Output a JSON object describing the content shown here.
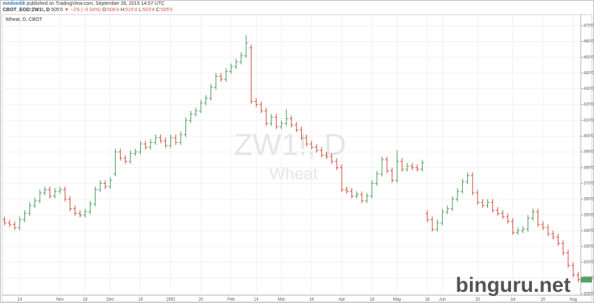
{
  "header": {
    "author": "medvedik",
    "published": "published on TradingView.com, September 28, 2015 14:57 UTC",
    "symbol": "CBOT_EOD:ZW1!, D",
    "price": "505'0",
    "change": "▼ −2'6 (−0.54%)",
    "fields": [
      {
        "label": "O:",
        "value": "508'4"
      },
      {
        "label": "H:",
        "value": "515'4"
      },
      {
        "label": "L:",
        "value": "503'4"
      },
      {
        "label": "C:",
        "value": "505'0"
      }
    ]
  },
  "chart_data": {
    "type": "ohlc",
    "title": "Wheat, D, CBOT",
    "watermark": "ZW1!, D",
    "watermark_sub": "Wheat",
    "site_watermark": "binguru.net",
    "up_color": "#53a065",
    "down_color": "#d75442",
    "categories": [
      null,
      null,
      null,
      "14",
      null,
      null,
      null,
      null,
      null,
      null,
      null,
      "Nov",
      null,
      null,
      null,
      null,
      "18",
      null,
      null,
      null,
      null,
      "Dec",
      null,
      null,
      null,
      null,
      null,
      "18",
      null,
      null,
      null,
      null,
      null,
      "1992",
      null,
      null,
      null,
      null,
      null,
      "20",
      null,
      null,
      null,
      null,
      null,
      "Feb",
      null,
      null,
      null,
      null,
      "14",
      null,
      null,
      null,
      null,
      "Mar",
      null,
      null,
      null,
      null,
      null,
      "16",
      null,
      null,
      null,
      null,
      null,
      "Apr",
      null,
      null,
      null,
      null,
      null,
      "18",
      null,
      null,
      null,
      null,
      "May",
      null,
      null,
      null,
      null,
      null,
      "18",
      null,
      null,
      "Jun",
      null,
      null,
      null,
      null,
      null,
      null,
      "15",
      null,
      null,
      null,
      null,
      null,
      null,
      "Jul",
      null,
      null,
      null,
      null,
      null,
      "20",
      null,
      null,
      null,
      null,
      null,
      "Aug",
      null
    ],
    "open": [
      347,
      345,
      344,
      342,
      347,
      351,
      356,
      359,
      364,
      366,
      362,
      365,
      366,
      360,
      354,
      351,
      350,
      352,
      357,
      366,
      370,
      368,
      376,
      390,
      386,
      384,
      389,
      390,
      395,
      393,
      396,
      399,
      397,
      394,
      399,
      396,
      401,
      410,
      414,
      416,
      421,
      424,
      431,
      438,
      436,
      441,
      444,
      447,
      451,
      456,
      422,
      420,
      416,
      408,
      412,
      406,
      408,
      411,
      407,
      404,
      399,
      395,
      393,
      391,
      388,
      387,
      384,
      380,
      366,
      365,
      362,
      363,
      359,
      362,
      370,
      376,
      385,
      378,
      372,
      384,
      379,
      381,
      380,
      379,
      351,
      347,
      341,
      345,
      352,
      354,
      360,
      365,
      371,
      375,
      364,
      358,
      356,
      358,
      353,
      351,
      349,
      346,
      339,
      340,
      341,
      348,
      352,
      344,
      342,
      338,
      336,
      332,
      326,
      318,
      312
    ],
    "high": [
      349,
      347,
      346,
      349,
      353,
      358,
      361,
      366,
      368,
      368,
      367,
      368,
      368,
      362,
      356,
      353,
      354,
      359,
      368,
      372,
      372,
      374,
      392,
      392,
      388,
      391,
      392,
      397,
      397,
      398,
      401,
      401,
      399,
      401,
      401,
      403,
      412,
      416,
      418,
      423,
      426,
      433,
      440,
      440,
      443,
      446,
      449,
      453,
      464,
      458,
      424,
      422,
      418,
      414,
      414,
      410,
      417,
      413,
      409,
      406,
      401,
      397,
      395,
      393,
      390,
      389,
      386,
      382,
      368,
      367,
      365,
      365,
      364,
      372,
      378,
      387,
      387,
      380,
      391,
      386,
      383,
      383,
      382,
      385,
      353,
      349,
      347,
      354,
      356,
      362,
      367,
      373,
      377,
      377,
      366,
      360,
      360,
      360,
      355,
      353,
      351,
      348,
      342,
      343,
      350,
      354,
      354,
      346,
      344,
      340,
      338,
      334,
      328,
      320,
      314
    ],
    "low": [
      343.5,
      342.5,
      340.5,
      340.5,
      345.5,
      349.5,
      354.5,
      357.5,
      362.5,
      360.5,
      360.5,
      363.5,
      358.5,
      352.5,
      349.5,
      348.5,
      348.5,
      350.5,
      355.5,
      364.5,
      366.5,
      366.5,
      374.5,
      384.5,
      382.5,
      382.5,
      387.5,
      388.5,
      391.5,
      391.5,
      394.5,
      395.5,
      392.5,
      392.5,
      394.5,
      394.5,
      399.5,
      408.5,
      412.5,
      414.5,
      419.5,
      422.5,
      429.5,
      434.5,
      434.5,
      439.5,
      442.5,
      445.5,
      449.5,
      420.5,
      418.5,
      414.5,
      406.5,
      406.5,
      404.5,
      404.5,
      406.5,
      405.5,
      402.5,
      397.5,
      393.5,
      391.5,
      389.5,
      386.5,
      385.5,
      382.5,
      378.5,
      364.5,
      363.5,
      360.5,
      360.5,
      357.5,
      357.5,
      360.5,
      368.5,
      374.5,
      376.5,
      370.5,
      370.5,
      377.5,
      377.5,
      378.5,
      377.5,
      377.5,
      345.5,
      339.5,
      339.5,
      343.5,
      350.5,
      352.5,
      358.5,
      363.5,
      369.5,
      362.5,
      356.5,
      354.5,
      354.5,
      351.5,
      349.5,
      347.5,
      344.5,
      337.5,
      337.5,
      338.5,
      339.5,
      346.5,
      342.5,
      340.5,
      336.5,
      334.5,
      330.5,
      324.5,
      316.5,
      310.5,
      307.5
    ],
    "close": [
      345,
      344,
      342,
      347,
      351,
      356,
      359,
      364,
      366,
      362,
      365,
      366,
      360,
      354,
      351,
      350,
      352,
      357,
      366,
      370,
      368,
      372,
      390,
      386,
      384,
      389,
      390,
      395,
      393,
      396,
      399,
      397,
      394,
      399,
      396,
      401,
      410,
      414,
      416,
      421,
      424,
      431,
      438,
      436,
      441,
      444,
      447,
      451,
      459,
      422,
      420,
      416,
      408,
      412,
      406,
      408,
      411,
      407,
      404,
      399,
      395,
      393,
      391,
      388,
      387,
      384,
      380,
      366,
      365,
      362,
      363,
      359,
      362,
      370,
      376,
      385,
      378,
      372,
      384,
      379,
      381,
      380,
      379,
      383,
      347,
      341,
      345,
      352,
      354,
      360,
      365,
      371,
      375,
      364,
      358,
      356,
      358,
      353,
      351,
      349,
      346,
      339,
      340,
      341,
      348,
      352,
      344,
      342,
      338,
      336,
      332,
      326,
      318,
      312,
      309
    ],
    "ylim": [
      298.2,
      472.6
    ],
    "yticks": [
      {
        "value": 300,
        "label": "300'0"
      },
      {
        "value": 310,
        "label": "310'0"
      },
      {
        "value": 320,
        "label": "320'0"
      },
      {
        "value": 330,
        "label": "330'0"
      },
      {
        "value": 340,
        "label": "340'0"
      },
      {
        "value": 350,
        "label": "350'0"
      },
      {
        "value": 360,
        "label": "360'0"
      },
      {
        "value": 370,
        "label": "370'0"
      },
      {
        "value": 380,
        "label": "380'0"
      },
      {
        "value": 390,
        "label": "390'0"
      },
      {
        "value": 400,
        "label": "400'0"
      },
      {
        "value": 410,
        "label": "410'0"
      },
      {
        "value": 420,
        "label": "420'0"
      },
      {
        "value": 430,
        "label": "430'0"
      },
      {
        "value": 440,
        "label": "440'0"
      },
      {
        "value": 450,
        "label": "450'0"
      },
      {
        "value": 460,
        "label": "460'0"
      },
      {
        "value": 470,
        "label": "470'0"
      }
    ],
    "grid": true
  }
}
